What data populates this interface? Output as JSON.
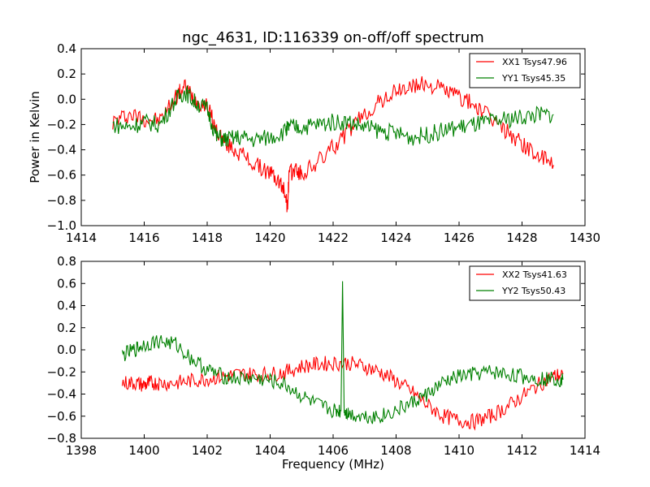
{
  "figure": {
    "title": "ngc_4631, ID:116339 on-off/off spectrum"
  },
  "colors": {
    "red": "#ff0000",
    "green": "#008000"
  },
  "chart_data": [
    {
      "type": "line",
      "title": "ngc_4631, ID:116339 on-off/off spectrum",
      "xlabel": "",
      "ylabel": "Power in Kelvin",
      "xlim": [
        1414,
        1430
      ],
      "ylim": [
        -1.0,
        0.4
      ],
      "xticks": [
        "1414",
        "1416",
        "1418",
        "1420",
        "1422",
        "1424",
        "1426",
        "1428",
        "1430"
      ],
      "yticks": [
        "0.4",
        "0.2",
        "0.0",
        "−0.2",
        "−0.4",
        "−0.6",
        "−0.8",
        "−1.0"
      ],
      "legend": "top-right",
      "series": [
        {
          "name": "XX1 Tsys47.96",
          "color": "#ff0000",
          "x": [
            1415.0,
            1415.5,
            1416.0,
            1416.5,
            1417.0,
            1417.3,
            1417.6,
            1418.0,
            1418.3,
            1418.6,
            1419.0,
            1419.5,
            1420.0,
            1420.3,
            1420.5,
            1420.55,
            1420.6,
            1420.8,
            1421.0,
            1421.5,
            1422.0,
            1422.5,
            1423.0,
            1423.5,
            1424.0,
            1424.5,
            1425.0,
            1425.5,
            1426.0,
            1426.5,
            1427.0,
            1427.5,
            1428.0,
            1428.5,
            1429.0
          ],
          "y": [
            -0.18,
            -0.12,
            -0.15,
            -0.17,
            0.02,
            0.1,
            0.0,
            -0.05,
            -0.25,
            -0.35,
            -0.42,
            -0.52,
            -0.58,
            -0.66,
            -0.75,
            -0.87,
            -0.6,
            -0.55,
            -0.6,
            -0.5,
            -0.38,
            -0.25,
            -0.12,
            -0.02,
            0.06,
            0.1,
            0.12,
            0.08,
            0.02,
            -0.05,
            -0.15,
            -0.25,
            -0.35,
            -0.45,
            -0.52
          ]
        },
        {
          "name": "YY1 Tsys45.35",
          "color": "#008000",
          "x": [
            1415.0,
            1415.5,
            1416.0,
            1416.5,
            1417.0,
            1417.3,
            1417.6,
            1418.0,
            1418.3,
            1418.6,
            1419.0,
            1419.5,
            1420.0,
            1420.5,
            1420.6,
            1421.0,
            1421.5,
            1422.0,
            1422.5,
            1423.0,
            1423.5,
            1424.0,
            1424.5,
            1425.0,
            1425.5,
            1426.0,
            1426.5,
            1427.0,
            1427.5,
            1428.0,
            1428.5,
            1429.0
          ],
          "y": [
            -0.2,
            -0.22,
            -0.18,
            -0.2,
            0.0,
            0.06,
            -0.02,
            -0.08,
            -0.3,
            -0.32,
            -0.3,
            -0.32,
            -0.3,
            -0.25,
            -0.22,
            -0.22,
            -0.2,
            -0.18,
            -0.18,
            -0.22,
            -0.25,
            -0.27,
            -0.3,
            -0.28,
            -0.25,
            -0.22,
            -0.2,
            -0.18,
            -0.16,
            -0.14,
            -0.12,
            -0.12
          ]
        }
      ]
    },
    {
      "type": "line",
      "xlabel": "Frequency (MHz)",
      "ylabel": "",
      "xlim": [
        1398,
        1414
      ],
      "ylim": [
        -0.8,
        0.8
      ],
      "xticks": [
        "1398",
        "1400",
        "1402",
        "1404",
        "1406",
        "1408",
        "1410",
        "1412",
        "1414"
      ],
      "yticks": [
        "0.8",
        "0.6",
        "0.4",
        "0.2",
        "0.0",
        "−0.2",
        "−0.4",
        "−0.6",
        "−0.8"
      ],
      "legend": "top-right",
      "series": [
        {
          "name": "XX2 Tsys41.63",
          "color": "#ff0000",
          "x": [
            1399.3,
            1399.7,
            1400.0,
            1400.2,
            1400.5,
            1401.0,
            1401.5,
            1402.0,
            1402.5,
            1403.0,
            1403.5,
            1404.0,
            1404.5,
            1405.0,
            1405.5,
            1406.0,
            1406.5,
            1407.0,
            1407.5,
            1408.0,
            1408.5,
            1409.0,
            1409.5,
            1410.0,
            1410.5,
            1411.0,
            1411.5,
            1412.0,
            1412.5,
            1413.0,
            1413.3
          ],
          "y": [
            -0.3,
            -0.3,
            -0.32,
            -0.3,
            -0.3,
            -0.3,
            -0.28,
            -0.26,
            -0.24,
            -0.22,
            -0.22,
            -0.22,
            -0.2,
            -0.15,
            -0.13,
            -0.12,
            -0.12,
            -0.15,
            -0.2,
            -0.28,
            -0.38,
            -0.5,
            -0.6,
            -0.64,
            -0.65,
            -0.6,
            -0.52,
            -0.42,
            -0.32,
            -0.24,
            -0.22
          ]
        },
        {
          "name": "YY2 Tsys50.43",
          "color": "#008000",
          "x": [
            1399.3,
            1399.7,
            1400.0,
            1400.5,
            1401.0,
            1401.5,
            1402.0,
            1402.5,
            1403.0,
            1403.5,
            1404.0,
            1404.5,
            1405.0,
            1405.5,
            1406.0,
            1406.25,
            1406.3,
            1406.35,
            1406.5,
            1407.0,
            1407.5,
            1408.0,
            1408.5,
            1409.0,
            1409.5,
            1410.0,
            1410.5,
            1411.0,
            1411.5,
            1412.0,
            1412.5,
            1413.0,
            1413.3
          ],
          "y": [
            -0.05,
            0.0,
            0.05,
            0.08,
            0.05,
            -0.08,
            -0.18,
            -0.24,
            -0.26,
            -0.26,
            -0.28,
            -0.32,
            -0.42,
            -0.5,
            -0.55,
            -0.55,
            0.62,
            -0.55,
            -0.58,
            -0.6,
            -0.6,
            -0.55,
            -0.48,
            -0.4,
            -0.3,
            -0.24,
            -0.22,
            -0.2,
            -0.22,
            -0.24,
            -0.26,
            -0.26,
            -0.27
          ]
        }
      ]
    }
  ]
}
